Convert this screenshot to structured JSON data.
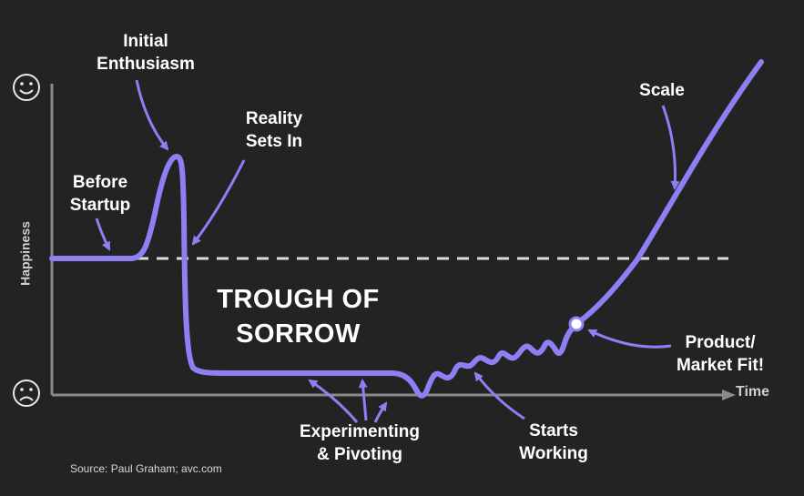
{
  "colors": {
    "background": "#232323",
    "curve": "#8c80f4",
    "axis": "#8a8a8a",
    "baseline_dash": "#dcdcdc",
    "text": "#ffffff"
  },
  "axes": {
    "y_label": "Happiness",
    "x_label": "Time",
    "top_icon": "smiley-face-icon",
    "bottom_icon": "frowny-face-icon"
  },
  "labels": {
    "initial_line1": "Initial",
    "initial_line2": "Enthusiasm",
    "reality_line1": "Reality",
    "reality_line2": "Sets In",
    "before_line1": "Before",
    "before_line2": "Startup",
    "trough_line1": "TROUGH OF",
    "trough_line2": "SORROW",
    "experimenting_line1": "Experimenting",
    "experimenting_line2": "& Pivoting",
    "starts_line1": "Starts",
    "starts_line2": "Working",
    "pmf_line1": "Product/",
    "pmf_line2": "Market Fit!",
    "scale": "Scale"
  },
  "source": "Source: Paul Graham; avc.com"
}
